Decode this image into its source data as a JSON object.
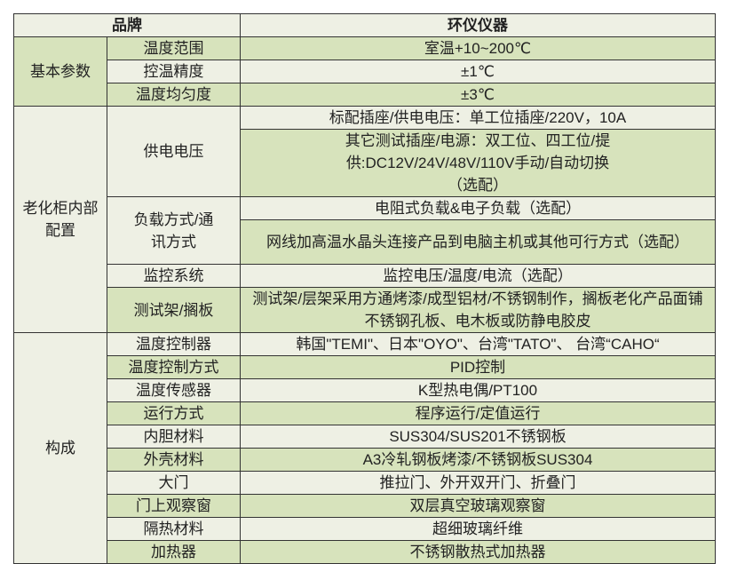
{
  "header": {
    "brand_label": "品牌",
    "brand_value": "环仪仪器"
  },
  "colors": {
    "light_row": "#eef0e4",
    "dark_row": "#d7e3bc",
    "border": "#333333"
  },
  "basic": {
    "group": "基本参数",
    "rows": [
      {
        "name": "温度范围",
        "value": "室温+10~200℃"
      },
      {
        "name": "控温精度",
        "value": "±1℃"
      },
      {
        "name": "温度均匀度",
        "value": "±3℃"
      }
    ]
  },
  "internal": {
    "group": "老化柜内部配置",
    "power": {
      "name": "供电电压",
      "values": [
        "标配插座/供电电压：单工位插座/220V，10A",
        "其它测试插座/电源：双工位、四工位/提供:DC12V/24V/48V/110V手动/自动切换（选配）"
      ]
    },
    "load": {
      "name": "负载方式/通讯方式",
      "values": [
        "电阻式负载&电子负载（选配）",
        "网线加高温水晶头连接产品到电脑主机或其他可行方式（选配）"
      ]
    },
    "monitor": {
      "name": "监控系统",
      "value": "监控电压/温度/电流（选配）"
    },
    "rack": {
      "name": "测试架/搁板",
      "value": "测试架/层架采用方通烤漆/成型铝材/不锈钢制作，搁板老化产品面铺不锈钢孔板、电木板或防静电胶皮"
    }
  },
  "composition": {
    "group": "构成",
    "rows": [
      {
        "name": "温度控制器",
        "value": "韩国\"TEMI\"、日本\"OYO\"、台湾\"TATO\"、 台湾“CAHO“"
      },
      {
        "name": "温度控制方式",
        "value": "PID控制"
      },
      {
        "name": "温度传感器",
        "value": "K型热电偶/PT100"
      },
      {
        "name": "运行方式",
        "value": "程序运行/定值运行"
      },
      {
        "name": "内胆材料",
        "value": "SUS304/SUS201不锈钢板"
      },
      {
        "name": "外壳材料",
        "value": "A3冷轧钢板烤漆/不锈钢板SUS304"
      },
      {
        "name": "大门",
        "value": "推拉门、外开双开门、折叠门"
      },
      {
        "name": "门上观察窗",
        "value": "双层真空玻璃观察窗"
      },
      {
        "name": "隔热材料",
        "value": "超细玻璃纤维"
      },
      {
        "name": "加热器",
        "value": "不锈钢散热式加热器"
      }
    ]
  }
}
